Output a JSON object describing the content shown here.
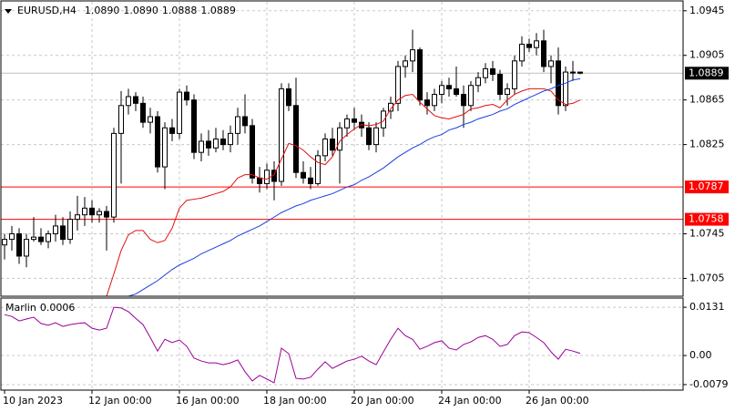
{
  "chart_data": [
    {
      "type": "candlestick",
      "title": "EURUSD,H4",
      "header_values": [
        {
          "value": 1.089,
          "label": "1.0890"
        },
        {
          "value": 1.089,
          "label": "1.0890"
        },
        {
          "value": 1.0888,
          "label": "1.0888"
        },
        {
          "value": 1.0889,
          "label": "1.0889"
        }
      ],
      "categories": [
        "10 Jan 2023",
        null,
        null,
        null,
        null,
        null,
        null,
        null,
        null,
        null,
        null,
        null,
        "12 Jan 00:00",
        null,
        null,
        null,
        null,
        null,
        null,
        null,
        null,
        null,
        null,
        null,
        "16 Jan 00:00",
        null,
        null,
        null,
        null,
        null,
        null,
        null,
        null,
        null,
        null,
        null,
        "18 Jan 00:00",
        null,
        null,
        null,
        null,
        null,
        null,
        null,
        null,
        null,
        null,
        null,
        "20 Jan 00:00",
        null,
        null,
        null,
        null,
        null,
        null,
        null,
        null,
        null,
        null,
        null,
        "24 Jan 00:00",
        null,
        null,
        null,
        null,
        null,
        null,
        null,
        null,
        null,
        null,
        null,
        "26 Jan 00:00",
        null,
        null,
        null,
        null,
        null,
        null,
        null
      ],
      "open": [
        1.0735,
        1.074,
        1.0745,
        1.0725,
        1.074,
        1.0742,
        1.0738,
        1.0745,
        1.0752,
        1.074,
        1.0758,
        1.0762,
        1.0768,
        1.0762,
        1.0765,
        1.076,
        1.0835,
        1.086,
        1.0868,
        1.0862,
        1.0845,
        1.085,
        1.0805,
        1.084,
        1.0835,
        1.0872,
        1.0865,
        1.0818,
        1.0828,
        1.0822,
        1.083,
        1.0825,
        1.0835,
        1.085,
        1.0842,
        1.0795,
        1.079,
        1.0802,
        1.0792,
        1.0875,
        1.086,
        1.08,
        1.0795,
        1.079,
        1.0815,
        1.083,
        1.082,
        1.084,
        1.0848,
        1.0845,
        1.084,
        1.0825,
        1.084,
        1.0855,
        1.0862,
        1.0895,
        1.09,
        1.091,
        1.0865,
        1.086,
        1.087,
        1.0878,
        1.0875,
        1.087,
        1.086,
        1.0878,
        1.0885,
        1.0893,
        1.0888,
        1.087,
        1.0875,
        1.09,
        1.0915,
        1.0912,
        1.0918,
        1.0895,
        1.09,
        1.086,
        1.089,
        1.089
      ],
      "high": [
        1.0745,
        1.0752,
        1.075,
        1.0745,
        1.076,
        1.075,
        1.0748,
        1.0762,
        1.076,
        1.0765,
        1.0779,
        1.0778,
        1.0775,
        1.0768,
        1.077,
        1.084,
        1.0873,
        1.0875,
        1.0872,
        1.0868,
        1.0858,
        1.0855,
        1.0845,
        1.0848,
        1.0875,
        1.0878,
        1.087,
        1.0835,
        1.0838,
        1.084,
        1.0838,
        1.0842,
        1.0858,
        1.087,
        1.0848,
        1.0805,
        1.0808,
        1.081,
        1.088,
        1.088,
        1.0885,
        1.081,
        1.0805,
        1.082,
        1.0835,
        1.084,
        1.0845,
        1.0852,
        1.0858,
        1.0852,
        1.0845,
        1.0845,
        1.0858,
        1.0868,
        1.09,
        1.0905,
        1.0928,
        1.0912,
        1.0872,
        1.0875,
        1.0882,
        1.0885,
        1.0895,
        1.0878,
        1.0882,
        1.089,
        1.0898,
        1.09,
        1.0892,
        1.088,
        1.0905,
        1.0922,
        1.092,
        1.0925,
        1.0928,
        1.0905,
        1.0912,
        1.0895,
        1.09,
        1.089
      ],
      "low": [
        1.0722,
        1.073,
        1.0718,
        1.0715,
        1.0738,
        1.0735,
        1.0732,
        1.0738,
        1.0735,
        1.0736,
        1.0748,
        1.0752,
        1.0755,
        1.0755,
        1.073,
        1.0755,
        1.079,
        1.0852,
        1.0855,
        1.084,
        1.0835,
        1.08,
        1.0785,
        1.0828,
        1.083,
        1.086,
        1.0812,
        1.081,
        1.0815,
        1.0818,
        1.082,
        1.0818,
        1.0825,
        1.0835,
        1.079,
        1.0782,
        1.0785,
        1.0775,
        1.0788,
        1.0855,
        1.0795,
        1.079,
        1.0785,
        1.0788,
        1.081,
        1.0815,
        1.079,
        1.0832,
        1.0838,
        1.0832,
        1.082,
        1.0818,
        1.0832,
        1.0848,
        1.0855,
        1.0885,
        1.089,
        1.086,
        1.0852,
        1.0855,
        1.0862,
        1.0868,
        1.0868,
        1.084,
        1.0855,
        1.0872,
        1.088,
        1.0882,
        1.0865,
        1.086,
        1.087,
        1.0895,
        1.0908,
        1.0905,
        1.089,
        1.088,
        1.0852,
        1.0855,
        1.0882,
        1.0888
      ],
      "close": [
        1.074,
        1.0745,
        1.0725,
        1.074,
        1.0742,
        1.0738,
        1.0745,
        1.0752,
        1.074,
        1.0758,
        1.0762,
        1.0768,
        1.0762,
        1.0765,
        1.076,
        1.0835,
        1.086,
        1.0868,
        1.0862,
        1.0845,
        1.085,
        1.0805,
        1.084,
        1.0835,
        1.0872,
        1.0865,
        1.0818,
        1.0828,
        1.0822,
        1.083,
        1.0825,
        1.0835,
        1.085,
        1.0842,
        1.0795,
        1.079,
        1.0802,
        1.0792,
        1.0875,
        1.086,
        1.08,
        1.0795,
        1.079,
        1.0815,
        1.083,
        1.082,
        1.084,
        1.0848,
        1.0845,
        1.084,
        1.0825,
        1.084,
        1.0855,
        1.0862,
        1.0895,
        1.09,
        1.091,
        1.0865,
        1.086,
        1.087,
        1.0878,
        1.0875,
        1.087,
        1.086,
        1.0878,
        1.0885,
        1.0893,
        1.0888,
        1.087,
        1.0875,
        1.09,
        1.0915,
        1.0912,
        1.0918,
        1.0895,
        1.09,
        1.086,
        1.089,
        1.089,
        1.0889
      ],
      "overlays": [
        {
          "color": "#e01010",
          "values": [
            null,
            null,
            null,
            null,
            null,
            null,
            null,
            null,
            null,
            null,
            null,
            null,
            null,
            null,
            1.0689,
            1.0709,
            1.073,
            1.0744,
            1.0748,
            1.0748,
            1.074,
            1.0737,
            1.0739,
            1.075,
            1.0768,
            1.0775,
            1.0776,
            1.0777,
            1.0779,
            1.0781,
            1.0783,
            1.0787,
            1.0795,
            1.0798,
            1.0798,
            1.0795,
            1.0794,
            1.0798,
            1.0812,
            1.0826,
            1.0824,
            1.082,
            1.0814,
            1.0809,
            1.0807,
            1.0814,
            1.0828,
            1.0834,
            1.0839,
            1.0843,
            1.0842,
            1.0843,
            1.0846,
            1.0857,
            1.0865,
            1.0869,
            1.087,
            1.0863,
            1.0857,
            1.0851,
            1.0849,
            1.0848,
            1.085,
            1.0852,
            1.0857,
            1.0858,
            1.086,
            1.0861,
            1.0858,
            1.0865,
            1.087,
            1.0873,
            1.0875,
            1.0875,
            1.0875,
            1.0873,
            1.0865,
            1.0861,
            1.0862,
            1.0865
          ]
        },
        {
          "color": "#1a3fe0",
          "values": [
            null,
            null,
            null,
            null,
            null,
            null,
            null,
            null,
            null,
            null,
            null,
            null,
            null,
            null,
            null,
            null,
            null,
            1.0689,
            1.0691,
            1.0695,
            1.0699,
            1.0703,
            1.0708,
            1.0713,
            1.0717,
            1.072,
            1.0723,
            1.0727,
            1.073,
            1.0733,
            1.0736,
            1.0739,
            1.0743,
            1.0746,
            1.0749,
            1.0752,
            1.0756,
            1.076,
            1.0764,
            1.0767,
            1.077,
            1.0772,
            1.0775,
            1.0777,
            1.0779,
            1.0781,
            1.0784,
            1.0787,
            1.0789,
            1.0793,
            1.0796,
            1.08,
            1.0804,
            1.0809,
            1.0814,
            1.0818,
            1.0822,
            1.0825,
            1.0829,
            1.0832,
            1.0834,
            1.0838,
            1.084,
            1.0843,
            1.0845,
            1.0848,
            1.085,
            1.0852,
            1.0855,
            1.0857,
            1.0861,
            1.0864,
            1.0867,
            1.087,
            1.0873,
            1.0875,
            1.0878,
            1.088,
            1.0883,
            1.0884
          ]
        }
      ],
      "levels": [
        {
          "value": 1.0787,
          "color": "#ff0000"
        },
        {
          "value": 1.0758,
          "color": "#ff0000"
        }
      ],
      "last_price": 1.0889,
      "ylim": [
        1.0689,
        1.0953
      ],
      "yticks": [
        1.0945,
        1.0905,
        1.0865,
        1.0825,
        1.0745,
        1.0705
      ],
      "grid": true
    },
    {
      "type": "line",
      "title": "Marlin",
      "current_value": 0.0006,
      "color": "#9a009a",
      "values": [
        0.0111,
        0.0106,
        0.0094,
        0.0099,
        0.0104,
        0.0087,
        0.0082,
        0.0089,
        0.0079,
        0.0084,
        0.0087,
        0.0089,
        0.0074,
        0.0069,
        0.0074,
        0.0131,
        0.0129,
        0.0119,
        0.0101,
        0.0084,
        0.0049,
        0.0012,
        0.0044,
        0.0035,
        0.0042,
        0.0025,
        -0.0007,
        -0.0015,
        -0.002,
        -0.002,
        -0.0025,
        -0.002,
        -0.0012,
        -0.0044,
        -0.0069,
        -0.0054,
        -0.0064,
        -0.0074,
        0.002,
        0.0005,
        -0.0062,
        -0.0064,
        -0.0059,
        -0.0037,
        -0.0017,
        -0.0035,
        -0.0025,
        -0.0015,
        -0.001,
        -0.0002,
        -0.0015,
        -0.0025,
        0.001,
        0.0044,
        0.0074,
        0.0054,
        0.0044,
        0.0017,
        0.0025,
        0.0035,
        0.004,
        0.002,
        0.0015,
        0.003,
        0.0037,
        0.0049,
        0.0054,
        0.0044,
        0.0025,
        0.003,
        0.0054,
        0.0064,
        0.0062,
        0.0049,
        0.0035,
        0.001,
        -0.001,
        0.0017,
        0.0012,
        0.0006
      ],
      "ylim": [
        -0.0094,
        0.0156
      ],
      "yticks": [
        0.0131,
        {
          "value": 0,
          "label": "0.00"
        },
        -0.0079
      ],
      "grid": true
    }
  ]
}
